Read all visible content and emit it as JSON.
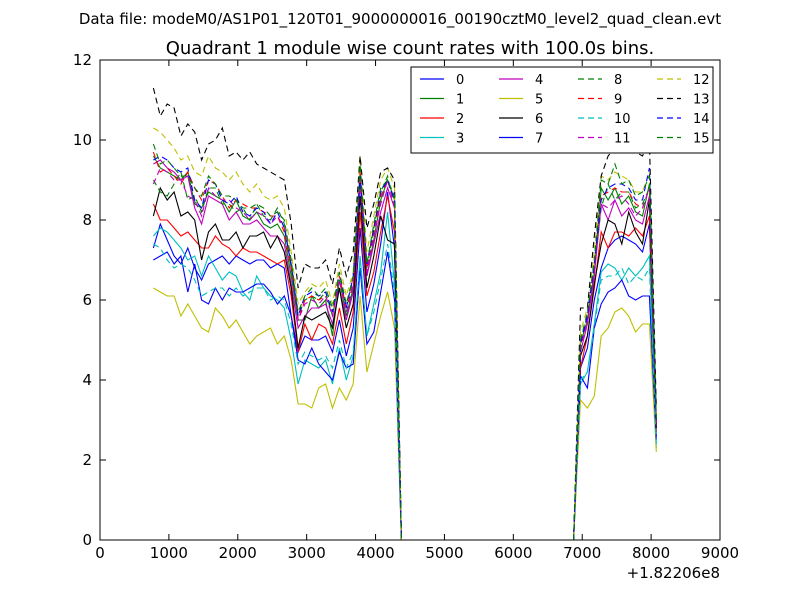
{
  "chart_data": {
    "type": "line",
    "suptitle": "Data file: modeM0/AS1P01_120T01_9000000016_00190cztM0_level2_quad_clean.evt",
    "title": "Quadrant 1 module wise count rates with 100.0s bins.",
    "xlabel": "",
    "ylabel": "",
    "x_offset_label": "+1.82206e8",
    "xlim": [
      0,
      9000
    ],
    "ylim": [
      0,
      12
    ],
    "xticks": [
      0,
      1000,
      2000,
      3000,
      4000,
      5000,
      6000,
      7000,
      8000,
      9000
    ],
    "yticks": [
      0,
      2,
      4,
      6,
      8,
      10,
      12
    ],
    "grid": false,
    "legend_position": "top-right",
    "legend_columns": 4,
    "x": [
      775,
      875,
      975,
      1075,
      1175,
      1275,
      1375,
      1475,
      1575,
      1675,
      1775,
      1875,
      1975,
      2075,
      2175,
      2275,
      2375,
      2475,
      2575,
      2675,
      2775,
      2875,
      2975,
      3075,
      3175,
      3275,
      3375,
      3475,
      3575,
      3675,
      3775,
      3875,
      3975,
      4075,
      4175,
      4275,
      4375,
      4475,
      6775,
      6875,
      6975,
      7075,
      7175,
      7275,
      7375,
      7475,
      7575,
      7675,
      7775,
      7875,
      7975,
      8075
    ],
    "series": [
      {
        "name": "0",
        "color": "#0000ff",
        "dash": "solid",
        "values": [
          7.3,
          7.9,
          7.5,
          7.1,
          6.9,
          7.3,
          6.8,
          6.5,
          6.9,
          7.0,
          7.1,
          6.9,
          7.1,
          7.0,
          6.9,
          7.0,
          7.0,
          6.8,
          6.9,
          6.8,
          5.6,
          4.7,
          5.1,
          5.0,
          5.0,
          5.1,
          4.7,
          5.5,
          4.6,
          5.3,
          7.8,
          5.7,
          6.4,
          7.4,
          8.7,
          7.3,
          0.0,
          0.0,
          0.0,
          0.0,
          4.3,
          4.8,
          6.0,
          6.8,
          7.3,
          7.5,
          7.6,
          7.5,
          7.4,
          7.2,
          7.9,
          2.6
        ]
      },
      {
        "name": "1",
        "color": "#008000",
        "dash": "solid",
        "values": [
          9.6,
          9.3,
          9.2,
          9.1,
          9.0,
          9.2,
          8.4,
          8.3,
          8.7,
          8.6,
          8.5,
          8.2,
          8.5,
          8.1,
          8.0,
          8.2,
          7.9,
          7.8,
          7.9,
          7.6,
          6.6,
          5.5,
          5.5,
          6.1,
          5.8,
          6.0,
          5.1,
          6.5,
          5.6,
          6.3,
          9.2,
          6.6,
          7.5,
          8.5,
          9.0,
          8.5,
          0.0,
          0.0,
          0.0,
          0.0,
          4.9,
          5.5,
          6.7,
          8.8,
          8.5,
          8.8,
          8.4,
          8.6,
          8.2,
          8.1,
          8.9,
          3.0
        ]
      },
      {
        "name": "2",
        "color": "#ff0000",
        "dash": "solid",
        "values": [
          8.4,
          8.0,
          8.0,
          7.8,
          7.6,
          7.7,
          7.5,
          7.3,
          7.3,
          7.6,
          7.4,
          7.3,
          7.1,
          7.3,
          7.2,
          7.2,
          7.1,
          7.0,
          6.9,
          7.0,
          6.1,
          4.7,
          5.4,
          5.0,
          5.4,
          5.3,
          4.9,
          5.8,
          4.9,
          5.7,
          8.2,
          6.1,
          6.7,
          7.7,
          8.6,
          7.7,
          0.0,
          0.0,
          0.0,
          0.0,
          4.3,
          5.1,
          6.3,
          7.7,
          7.3,
          7.7,
          7.7,
          7.6,
          7.8,
          7.6,
          8.1,
          2.7
        ]
      },
      {
        "name": "3",
        "color": "#00bfbf",
        "dash": "solid",
        "values": [
          7.6,
          7.8,
          7.7,
          7.5,
          7.3,
          7.0,
          7.1,
          6.6,
          7.1,
          6.8,
          6.5,
          6.7,
          6.6,
          6.2,
          6.0,
          6.6,
          6.3,
          6.1,
          6.0,
          5.8,
          5.0,
          3.9,
          4.5,
          4.4,
          4.3,
          4.5,
          3.9,
          4.8,
          4.0,
          4.6,
          7.1,
          5.1,
          5.9,
          6.7,
          8.2,
          6.4,
          0.0,
          0.0,
          0.0,
          0.0,
          3.9,
          4.2,
          5.4,
          6.7,
          6.9,
          6.8,
          6.5,
          6.8,
          6.6,
          6.8,
          7.1,
          2.3
        ]
      },
      {
        "name": "4",
        "color": "#bf00bf",
        "dash": "solid",
        "values": [
          9.4,
          9.5,
          9.3,
          9.2,
          9.0,
          9.1,
          8.3,
          7.9,
          8.6,
          8.5,
          8.4,
          8.0,
          8.2,
          7.9,
          7.9,
          8.0,
          7.8,
          7.6,
          7.6,
          7.4,
          6.4,
          5.3,
          5.6,
          5.8,
          5.8,
          5.9,
          5.4,
          6.3,
          5.5,
          6.2,
          8.9,
          6.6,
          7.4,
          8.2,
          8.8,
          8.3,
          0.0,
          0.0,
          0.0,
          0.0,
          4.7,
          5.4,
          6.6,
          8.4,
          8.0,
          8.5,
          8.1,
          8.3,
          8.0,
          7.9,
          8.6,
          2.9
        ]
      },
      {
        "name": "5",
        "color": "#bfbf00",
        "dash": "solid",
        "values": [
          6.3,
          6.2,
          6.1,
          6.1,
          5.6,
          5.9,
          5.6,
          5.3,
          5.2,
          5.8,
          5.6,
          5.3,
          5.5,
          5.2,
          4.9,
          5.1,
          5.2,
          5.3,
          4.9,
          5.1,
          4.5,
          3.4,
          3.4,
          3.3,
          3.8,
          3.9,
          3.3,
          3.8,
          3.5,
          3.9,
          6.1,
          4.2,
          4.9,
          5.6,
          6.2,
          5.3,
          0.0,
          0.0,
          0.0,
          0.0,
          3.5,
          3.3,
          3.6,
          5.1,
          5.3,
          5.7,
          5.8,
          5.6,
          5.2,
          5.4,
          5.4,
          2.2
        ]
      },
      {
        "name": "6",
        "color": "#000000",
        "dash": "solid",
        "values": [
          8.1,
          8.8,
          8.5,
          8.7,
          8.1,
          8.2,
          8.0,
          7.0,
          7.7,
          7.9,
          7.5,
          7.5,
          7.7,
          7.3,
          7.6,
          7.6,
          7.7,
          7.3,
          7.6,
          7.2,
          6.3,
          4.8,
          5.6,
          5.5,
          5.6,
          5.7,
          5.3,
          6.3,
          5.3,
          5.9,
          8.6,
          6.3,
          7.1,
          8.1,
          7.5,
          7.4,
          0.0,
          0.0,
          0.0,
          0.0,
          4.6,
          5.1,
          6.4,
          7.4,
          8.0,
          7.9,
          7.4,
          8.2,
          7.7,
          7.4,
          8.5,
          2.8
        ]
      },
      {
        "name": "7",
        "color": "#0000ff",
        "dash": "solid",
        "values": [
          7.0,
          7.1,
          7.2,
          6.9,
          7.1,
          6.2,
          6.9,
          6.0,
          5.9,
          6.3,
          6.0,
          6.3,
          6.2,
          6.2,
          6.3,
          6.4,
          6.4,
          6.2,
          5.9,
          6.1,
          5.6,
          4.5,
          4.4,
          4.8,
          4.4,
          4.2,
          4.0,
          4.7,
          4.3,
          4.4,
          6.8,
          4.9,
          5.2,
          6.2,
          7.2,
          6.0,
          0.0,
          0.0,
          0.0,
          0.0,
          4.1,
          3.8,
          5.3,
          5.9,
          6.2,
          6.3,
          6.5,
          6.1,
          6.0,
          6.1,
          6.1,
          2.5
        ]
      },
      {
        "name": "8",
        "color": "#008000",
        "dash": "dashed",
        "values": [
          9.0,
          8.7,
          8.6,
          8.9,
          9.2,
          8.5,
          8.6,
          8.2,
          8.8,
          8.8,
          8.4,
          8.4,
          8.2,
          8.3,
          8.0,
          8.4,
          8.1,
          8.0,
          8.3,
          7.9,
          6.8,
          5.6,
          6.0,
          6.1,
          6.0,
          6.2,
          5.6,
          6.5,
          5.9,
          6.5,
          9.0,
          6.8,
          7.8,
          8.7,
          9.1,
          8.3,
          0.0,
          0.0,
          0.0,
          0.0,
          5.0,
          5.6,
          6.8,
          8.3,
          8.9,
          8.5,
          8.7,
          8.7,
          8.3,
          8.4,
          8.8,
          3.0
        ]
      },
      {
        "name": "9",
        "color": "#ff0000",
        "dash": "dashed",
        "values": [
          9.7,
          9.2,
          9.3,
          9.1,
          8.9,
          9.2,
          8.8,
          8.5,
          9.0,
          8.9,
          8.6,
          8.3,
          8.5,
          8.4,
          8.3,
          8.3,
          8.2,
          8.1,
          8.1,
          7.7,
          6.8,
          5.5,
          6.0,
          6.1,
          6.0,
          6.1,
          5.6,
          6.6,
          5.8,
          6.4,
          9.2,
          6.8,
          7.7,
          8.6,
          9.0,
          8.5,
          0.0,
          0.0,
          0.0,
          0.0,
          4.9,
          5.6,
          6.9,
          8.6,
          8.7,
          8.8,
          8.7,
          8.7,
          8.4,
          8.3,
          8.8,
          2.9
        ]
      },
      {
        "name": "10",
        "color": "#00bfbf",
        "dash": "dashed",
        "values": [
          7.4,
          7.3,
          7.0,
          6.8,
          6.9,
          6.8,
          6.5,
          6.1,
          6.2,
          6.3,
          6.3,
          6.1,
          6.3,
          6.1,
          6.2,
          6.3,
          6.3,
          6.0,
          6.1,
          6.0,
          5.4,
          4.4,
          4.7,
          4.6,
          4.5,
          4.6,
          4.3,
          5.0,
          4.3,
          4.7,
          7.0,
          5.1,
          5.7,
          6.5,
          7.4,
          6.2,
          0.0,
          0.0,
          0.0,
          0.0,
          4.0,
          4.2,
          5.3,
          6.5,
          6.6,
          6.6,
          6.8,
          6.4,
          6.6,
          6.5,
          6.8,
          2.4
        ]
      },
      {
        "name": "11",
        "color": "#bf00bf",
        "dash": "dashed",
        "values": [
          8.9,
          9.3,
          9.2,
          9.0,
          9.0,
          8.6,
          8.5,
          8.1,
          8.8,
          8.6,
          8.5,
          8.5,
          8.3,
          8.2,
          8.0,
          8.2,
          8.1,
          7.9,
          8.1,
          7.8,
          6.9,
          5.5,
          5.9,
          6.0,
          5.9,
          6.1,
          5.6,
          6.5,
          5.7,
          6.4,
          9.1,
          6.7,
          7.6,
          8.4,
          9.0,
          8.3,
          0.0,
          0.0,
          0.0,
          0.0,
          4.8,
          5.5,
          6.8,
          8.4,
          8.3,
          8.5,
          8.6,
          8.4,
          8.1,
          8.3,
          8.8,
          2.9
        ]
      },
      {
        "name": "12",
        "color": "#bfbf00",
        "dash": "dashed",
        "values": [
          10.3,
          10.2,
          10.0,
          9.8,
          9.5,
          9.6,
          9.2,
          9.1,
          9.6,
          9.3,
          9.2,
          9.0,
          9.2,
          8.9,
          8.7,
          8.9,
          8.6,
          8.5,
          8.6,
          8.3,
          7.2,
          5.9,
          6.2,
          6.4,
          6.3,
          6.5,
          5.9,
          6.9,
          6.1,
          6.7,
          9.6,
          7.2,
          8.1,
          9.0,
          9.3,
          8.8,
          0.0,
          0.0,
          0.0,
          0.0,
          5.2,
          5.8,
          7.2,
          9.1,
          9.0,
          9.2,
          9.1,
          9.0,
          8.7,
          8.7,
          9.2,
          3.1
        ]
      },
      {
        "name": "13",
        "color": "#000000",
        "dash": "dashed",
        "values": [
          11.3,
          10.6,
          10.9,
          10.8,
          10.1,
          10.4,
          10.2,
          9.5,
          9.9,
          10.0,
          10.3,
          9.6,
          9.7,
          9.5,
          9.7,
          9.4,
          9.3,
          9.2,
          9.1,
          9.0,
          7.9,
          6.3,
          6.9,
          6.8,
          6.8,
          7.0,
          6.4,
          7.3,
          6.6,
          7.2,
          9.6,
          7.8,
          8.4,
          9.2,
          9.3,
          9.0,
          0.0,
          0.0,
          0.0,
          0.0,
          5.8,
          5.8,
          7.6,
          9.1,
          9.6,
          9.8,
          10.2,
          10.0,
          9.7,
          9.6,
          10.0,
          3.3
        ]
      },
      {
        "name": "14",
        "color": "#0000ff",
        "dash": "dashed",
        "values": [
          9.5,
          9.6,
          9.5,
          9.3,
          9.2,
          9.3,
          8.5,
          8.3,
          9.0,
          8.9,
          8.5,
          8.4,
          8.6,
          8.2,
          8.1,
          8.3,
          8.2,
          7.9,
          8.2,
          7.8,
          6.9,
          5.6,
          6.1,
          6.2,
          6.1,
          6.2,
          5.7,
          6.7,
          5.8,
          6.6,
          9.1,
          6.9,
          7.8,
          8.7,
          9.0,
          8.5,
          0.0,
          0.0,
          0.0,
          0.0,
          4.9,
          5.6,
          6.9,
          8.5,
          8.8,
          8.9,
          8.9,
          8.8,
          8.5,
          8.5,
          9.3,
          3.0
        ]
      },
      {
        "name": "15",
        "color": "#008000",
        "dash": "dashed",
        "values": [
          9.9,
          9.4,
          9.5,
          9.3,
          9.1,
          9.1,
          8.8,
          8.6,
          9.1,
          8.9,
          8.6,
          8.6,
          8.5,
          8.3,
          8.3,
          8.4,
          8.3,
          8.1,
          8.2,
          8.0,
          7.0,
          5.7,
          6.1,
          6.3,
          6.1,
          6.3,
          5.8,
          6.7,
          5.9,
          6.6,
          9.4,
          6.9,
          7.9,
          8.8,
          9.0,
          8.6,
          0.0,
          0.0,
          0.0,
          0.0,
          5.0,
          5.7,
          7.0,
          9.0,
          8.9,
          9.4,
          8.9,
          9.0,
          8.6,
          8.7,
          9.1,
          3.0
        ]
      }
    ]
  }
}
